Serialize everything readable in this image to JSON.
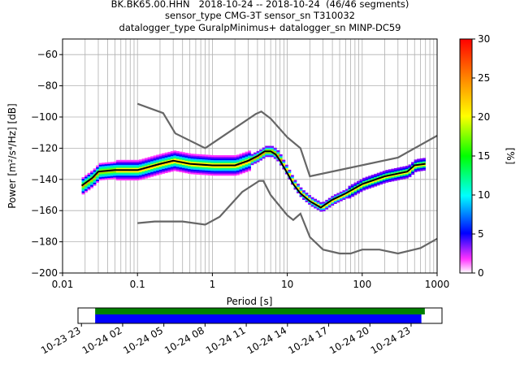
{
  "header": {
    "line1": "BK.BK65.00.HHN   2018-10-24 -- 2018-10-24  (46/46 segments)",
    "line2": "sensor_type CMG-3T sensor_sn T310032",
    "line3": "datalogger_type GuralpMinimus+ datalogger_sn MINP-DC59"
  },
  "chart_data": [
    {
      "type": "heatmap",
      "xlabel": "Period [s]",
      "ylabel": "Power [m²/s⁴/Hz] [dB]",
      "xscale": "log",
      "xlim": [
        0.01,
        1000
      ],
      "ylim": [
        -200,
        -50
      ],
      "xticks": [
        0.01,
        0.1,
        1,
        10,
        100,
        1000
      ],
      "xtick_labels": [
        "0.01",
        "0.1",
        "1",
        "10",
        "100",
        "1000"
      ],
      "yticks": [
        -200,
        -180,
        -160,
        -140,
        -120,
        -100,
        -80,
        -60
      ],
      "grid": true,
      "colorbar": {
        "label": "[%]",
        "range": [
          0,
          30
        ],
        "ticks": [
          0,
          5,
          10,
          15,
          20,
          25,
          30
        ]
      },
      "median_curve": [
        [
          0.018,
          -144
        ],
        [
          0.025,
          -139
        ],
        [
          0.03,
          -135
        ],
        [
          0.05,
          -134
        ],
        [
          0.1,
          -134
        ],
        [
          0.2,
          -130
        ],
        [
          0.3,
          -128
        ],
        [
          0.5,
          -130
        ],
        [
          1,
          -131
        ],
        [
          2,
          -131
        ],
        [
          3,
          -128
        ],
        [
          4,
          -125
        ],
        [
          5,
          -122
        ],
        [
          6,
          -122
        ],
        [
          7,
          -124
        ],
        [
          8,
          -128
        ],
        [
          10,
          -136
        ],
        [
          12,
          -143
        ],
        [
          15,
          -149
        ],
        [
          20,
          -154
        ],
        [
          28,
          -158
        ],
        [
          40,
          -153
        ],
        [
          60,
          -149
        ],
        [
          100,
          -143
        ],
        [
          200,
          -138
        ],
        [
          400,
          -135
        ],
        [
          500,
          -131
        ],
        [
          700,
          -130
        ]
      ],
      "low_noise_model": [
        [
          0.1,
          -168
        ],
        [
          0.17,
          -167
        ],
        [
          0.4,
          -167
        ],
        [
          0.8,
          -169
        ],
        [
          1.25,
          -164
        ],
        [
          2.5,
          -148
        ],
        [
          4.2,
          -141
        ],
        [
          4.8,
          -141
        ],
        [
          6,
          -150
        ],
        [
          10,
          -163
        ],
        [
          12,
          -166
        ],
        [
          15,
          -162
        ],
        [
          20,
          -177
        ],
        [
          30,
          -185
        ],
        [
          50,
          -187.5
        ],
        [
          70,
          -187.5
        ],
        [
          100,
          -185
        ],
        [
          170,
          -185
        ],
        [
          300,
          -187.5
        ],
        [
          600,
          -184
        ],
        [
          1000,
          -178
        ]
      ],
      "high_noise_model": [
        [
          0.1,
          -91.5
        ],
        [
          0.22,
          -97.5
        ],
        [
          0.32,
          -110.5
        ],
        [
          0.8,
          -120
        ],
        [
          3.8,
          -98
        ],
        [
          4.5,
          -96.5
        ],
        [
          6,
          -101
        ],
        [
          10,
          -113
        ],
        [
          15,
          -120
        ],
        [
          20,
          -138
        ],
        [
          300,
          -126
        ],
        [
          1000,
          -112
        ]
      ]
    },
    {
      "type": "bar",
      "title": "",
      "xlabel": "",
      "xticks": [
        "10-23 23",
        "10-24 02",
        "10-24 05",
        "10-24 08",
        "10-24 11",
        "10-24 14",
        "10-24 17",
        "10-24 20",
        "10-24 23"
      ],
      "x_range": [
        "2018-10-23 22:45",
        "2018-10-25 01:15"
      ],
      "series": [
        {
          "color": "#008000",
          "start": "2018-10-24 00:00",
          "end": "2018-10-25 00:00"
        },
        {
          "color": "#0000ff",
          "start": "2018-10-24 00:00",
          "end": "2018-10-24 23:45"
        }
      ]
    }
  ]
}
